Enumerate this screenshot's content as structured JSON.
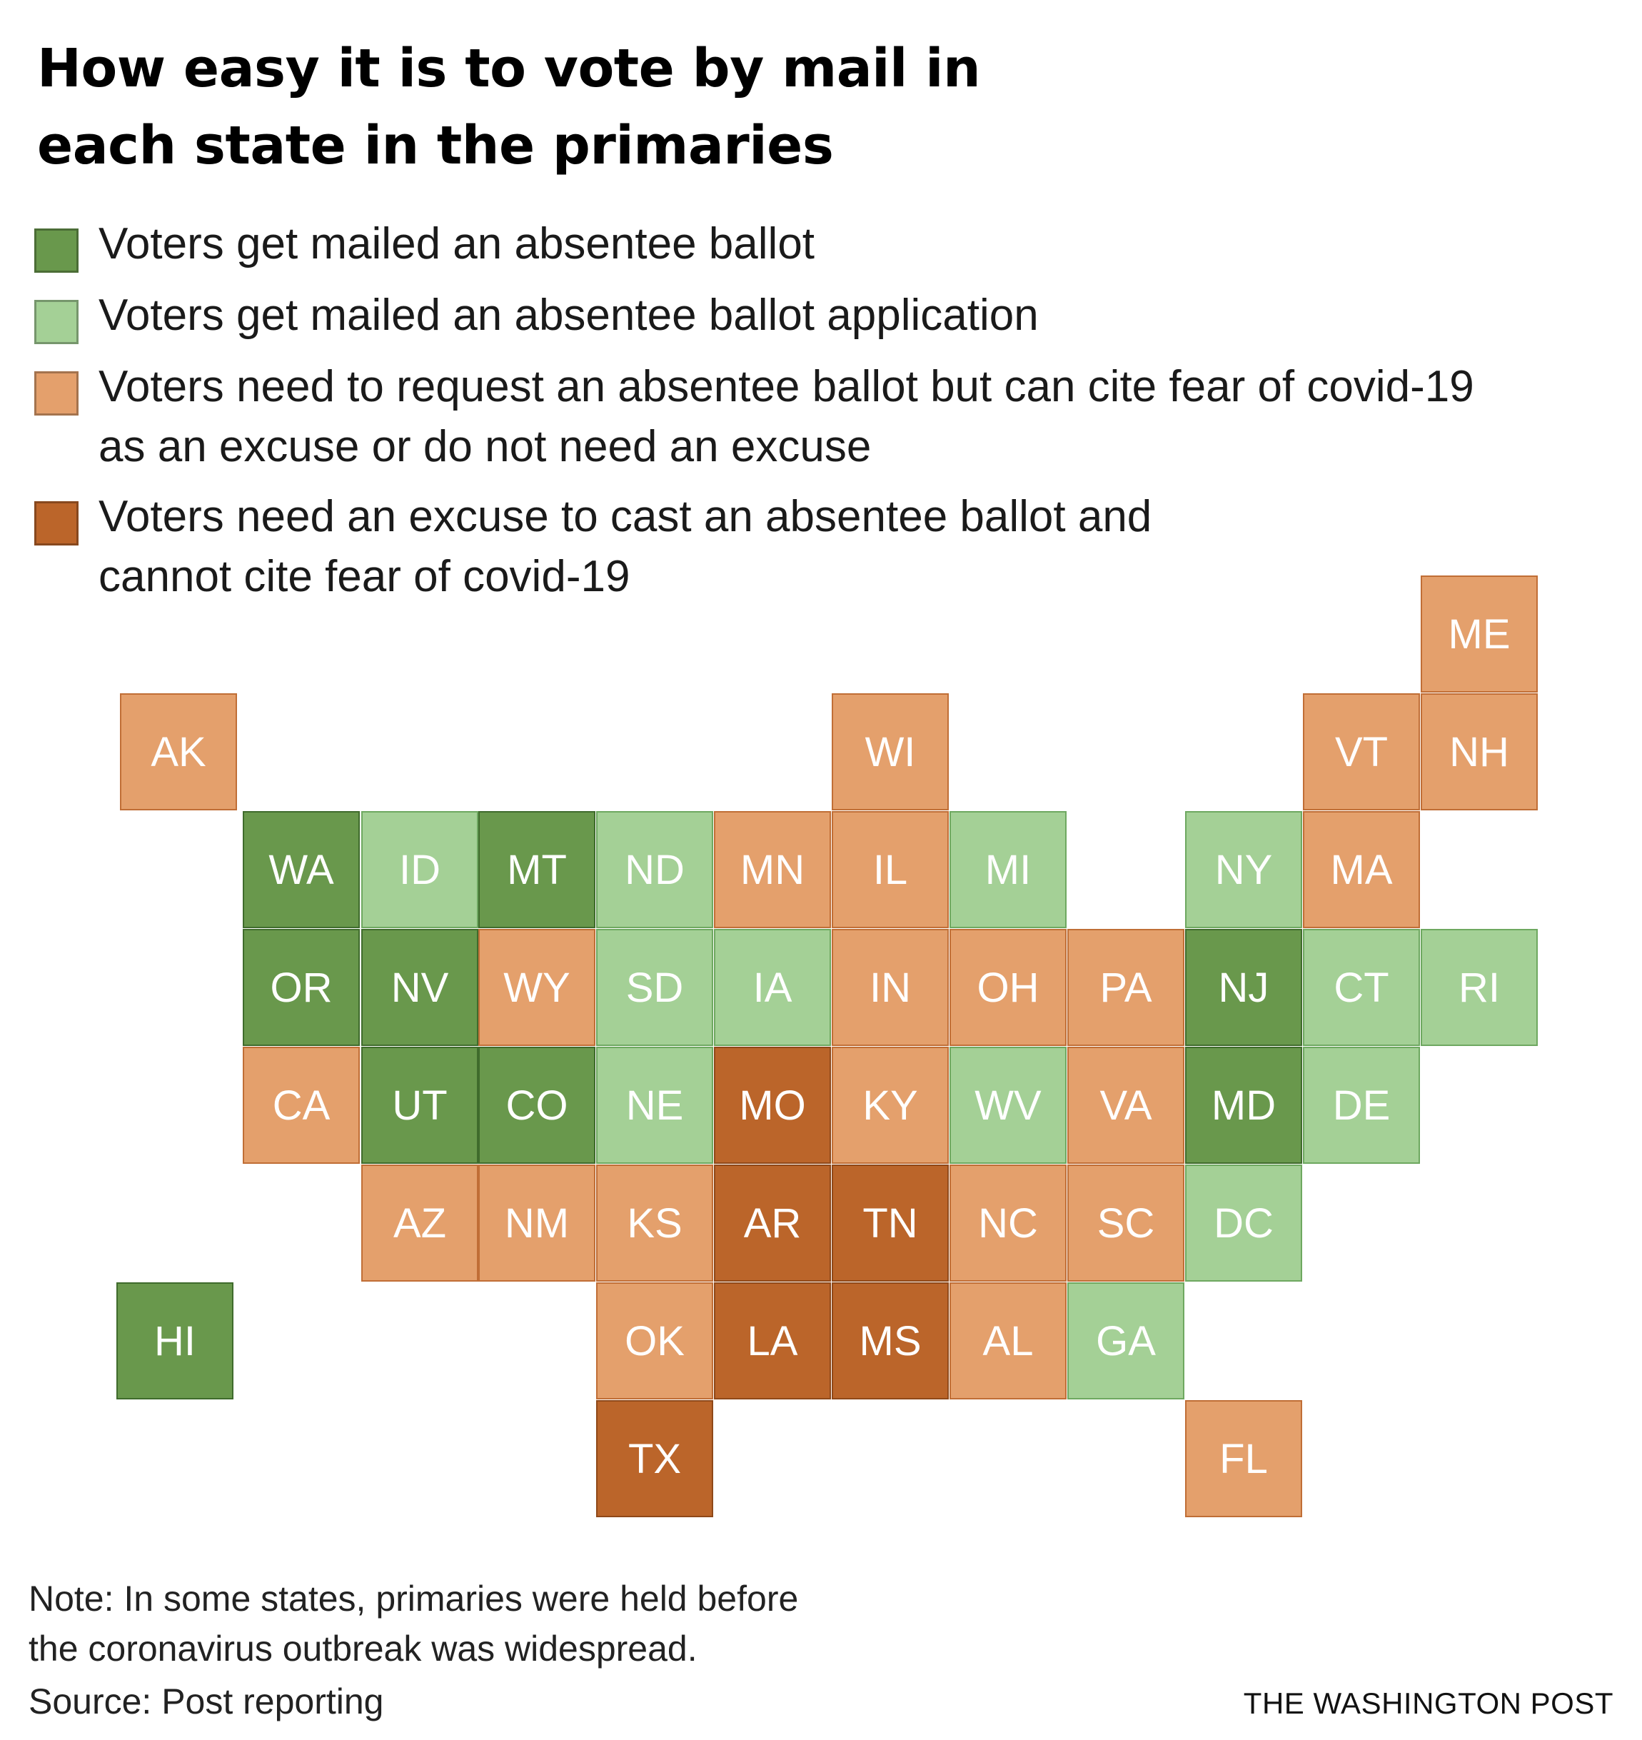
{
  "title": {
    "line1": "How easy it is to vote by mail in",
    "line2": "each state in the primaries"
  },
  "legend": [
    {
      "key": "mailed_ballot",
      "color": "#69984c",
      "lines": [
        "Voters get mailed an absentee ballot"
      ]
    },
    {
      "key": "mailed_application",
      "color": "#a4d096",
      "lines": [
        "Voters get mailed an absentee ballot application"
      ]
    },
    {
      "key": "request_no_excuse",
      "color": "#e4a06c",
      "lines": [
        "Voters need to request an absentee ballot but can cite fear of covid-19",
        "as an excuse or do not need an excuse"
      ]
    },
    {
      "key": "excuse_required",
      "color": "#bb652a",
      "lines": [
        "Voters need an excuse to cast an absentee ballot and",
        "cannot cite fear of covid-19"
      ]
    }
  ],
  "map_data": {
    "type": "tile-grid-map",
    "states": [
      {
        "abbr": "ME",
        "category": 3
      },
      {
        "abbr": "AK",
        "category": 3
      },
      {
        "abbr": "WI",
        "category": 3
      },
      {
        "abbr": "VT",
        "category": 3
      },
      {
        "abbr": "NH",
        "category": 3
      },
      {
        "abbr": "WA",
        "category": 1
      },
      {
        "abbr": "ID",
        "category": 2
      },
      {
        "abbr": "MT",
        "category": 1
      },
      {
        "abbr": "ND",
        "category": 2
      },
      {
        "abbr": "MN",
        "category": 3
      },
      {
        "abbr": "IL",
        "category": 3
      },
      {
        "abbr": "MI",
        "category": 2
      },
      {
        "abbr": "NY",
        "category": 2
      },
      {
        "abbr": "MA",
        "category": 3
      },
      {
        "abbr": "OR",
        "category": 1
      },
      {
        "abbr": "NV",
        "category": 1
      },
      {
        "abbr": "WY",
        "category": 3
      },
      {
        "abbr": "SD",
        "category": 2
      },
      {
        "abbr": "IA",
        "category": 2
      },
      {
        "abbr": "IN",
        "category": 3
      },
      {
        "abbr": "OH",
        "category": 3
      },
      {
        "abbr": "PA",
        "category": 3
      },
      {
        "abbr": "NJ",
        "category": 1
      },
      {
        "abbr": "CT",
        "category": 2
      },
      {
        "abbr": "RI",
        "category": 2
      },
      {
        "abbr": "CA",
        "category": 3
      },
      {
        "abbr": "UT",
        "category": 1
      },
      {
        "abbr": "CO",
        "category": 1
      },
      {
        "abbr": "NE",
        "category": 2
      },
      {
        "abbr": "MO",
        "category": 4
      },
      {
        "abbr": "KY",
        "category": 3
      },
      {
        "abbr": "WV",
        "category": 2
      },
      {
        "abbr": "VA",
        "category": 3
      },
      {
        "abbr": "MD",
        "category": 1
      },
      {
        "abbr": "DE",
        "category": 2
      },
      {
        "abbr": "AZ",
        "category": 3
      },
      {
        "abbr": "NM",
        "category": 3
      },
      {
        "abbr": "KS",
        "category": 3
      },
      {
        "abbr": "AR",
        "category": 4
      },
      {
        "abbr": "TN",
        "category": 4
      },
      {
        "abbr": "NC",
        "category": 3
      },
      {
        "abbr": "SC",
        "category": 3
      },
      {
        "abbr": "DC",
        "category": 2
      },
      {
        "abbr": "HI",
        "category": 1
      },
      {
        "abbr": "OK",
        "category": 3
      },
      {
        "abbr": "LA",
        "category": 4
      },
      {
        "abbr": "MS",
        "category": 4
      },
      {
        "abbr": "AL",
        "category": 3
      },
      {
        "abbr": "GA",
        "category": 2
      },
      {
        "abbr": "TX",
        "category": 4
      },
      {
        "abbr": "FL",
        "category": 3
      }
    ]
  },
  "footer": {
    "note_line1": "Note: In some states, primaries were held before",
    "note_line2": "the coronavirus outbreak was widespread.",
    "source": "Source: Post reporting",
    "credit": "THE WASHINGTON POST"
  }
}
